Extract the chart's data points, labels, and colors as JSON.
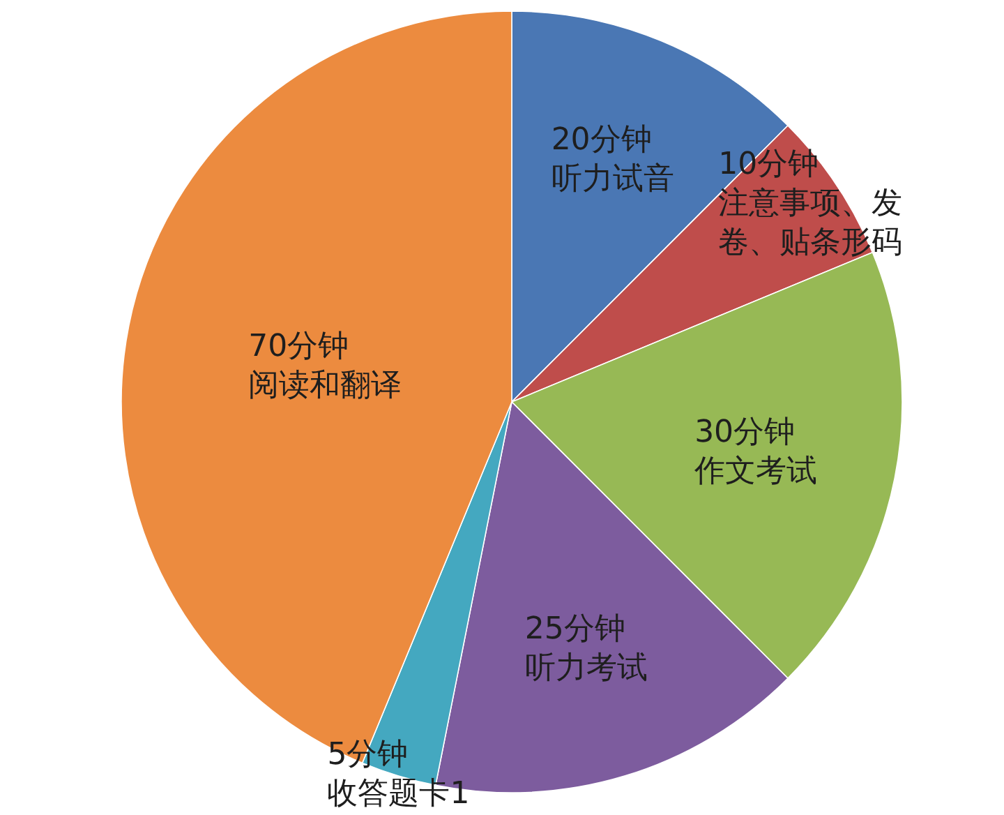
{
  "chart_data": {
    "type": "pie",
    "categories": [
      "听力试音",
      "注意事项、发卷、贴条形码",
      "作文考试",
      "听力考试",
      "收答题卡1",
      "阅读和翻译"
    ],
    "values": [
      20,
      10,
      30,
      25,
      5,
      70
    ],
    "value_labels": [
      "20分钟",
      "10分钟",
      "30分钟",
      "25分钟",
      "5分钟",
      "70分钟"
    ],
    "colors": [
      "#4a77b4",
      "#bf4d4b",
      "#97b955",
      "#7d5c9e",
      "#44a8c0",
      "#ec8b3f"
    ]
  }
}
